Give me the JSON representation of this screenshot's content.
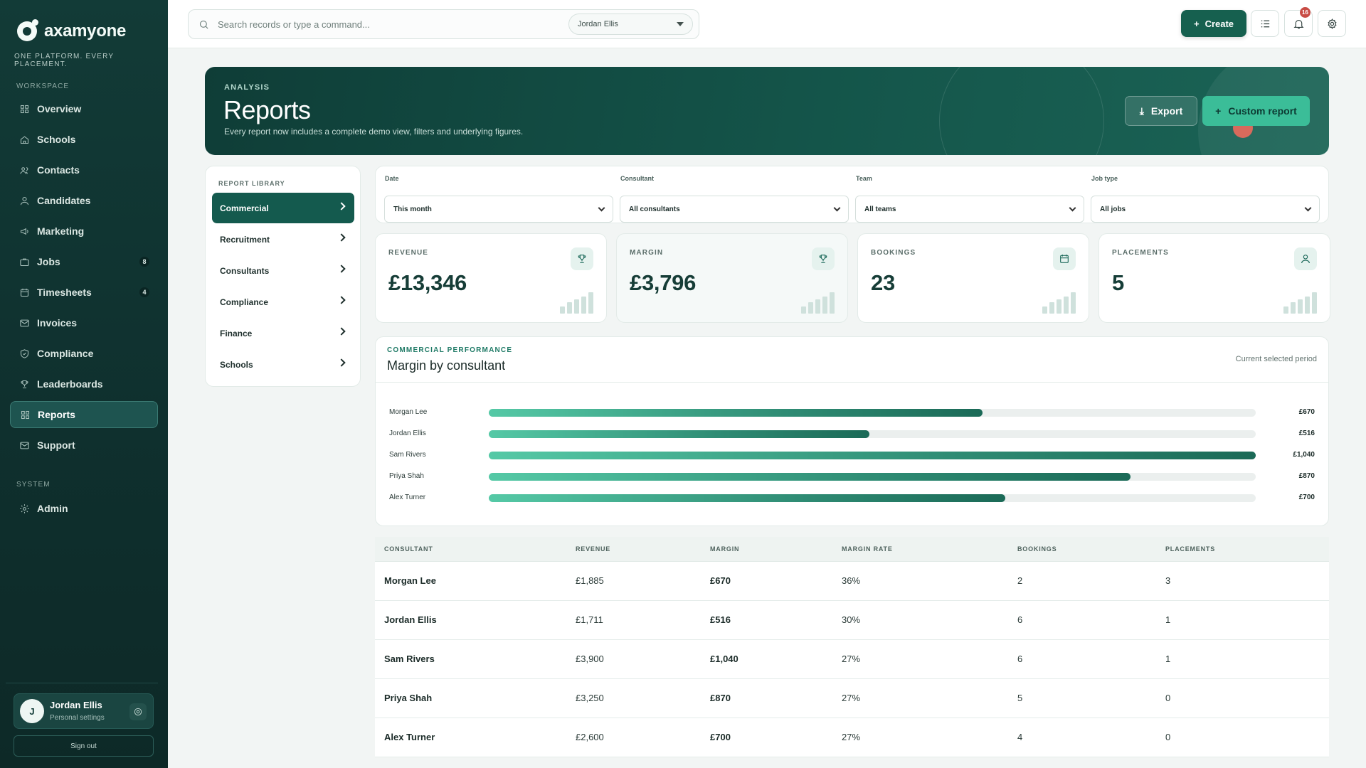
{
  "brand": {
    "name": "axamyone",
    "tagline": "ONE PLATFORM. EVERY PLACEMENT."
  },
  "sidebar": {
    "workspace_label": "WORKSPACE",
    "items": [
      {
        "label": "Overview",
        "icon": "grid-icon"
      },
      {
        "label": "Schools",
        "icon": "home-icon"
      },
      {
        "label": "Contacts",
        "icon": "users-icon"
      },
      {
        "label": "Candidates",
        "icon": "user-icon"
      },
      {
        "label": "Marketing",
        "icon": "megaphone-icon"
      },
      {
        "label": "Jobs",
        "icon": "briefcase-icon",
        "badge": "8"
      },
      {
        "label": "Timesheets",
        "icon": "calendar-icon",
        "badge": "4"
      },
      {
        "label": "Invoices",
        "icon": "mail-icon"
      },
      {
        "label": "Compliance",
        "icon": "shield-icon"
      },
      {
        "label": "Leaderboards",
        "icon": "trophy-icon"
      },
      {
        "label": "Reports",
        "icon": "grid-icon",
        "active": true
      },
      {
        "label": "Support",
        "icon": "mail-icon"
      }
    ],
    "system_label": "SYSTEM",
    "admin_label": "Admin",
    "user": {
      "initial": "J",
      "name": "Jordan Ellis",
      "subtitle": "Personal settings"
    },
    "signout_label": "Sign out"
  },
  "topbar": {
    "search_placeholder": "Search records or type a command...",
    "user_select": "Jordan Ellis",
    "create_label": "Create",
    "notification_count": "16"
  },
  "hero": {
    "kicker": "ANALYSIS",
    "title": "Reports",
    "subtitle": "Every report now includes a complete demo view, filters and underlying figures.",
    "export_label": "Export",
    "custom_label": "Custom report"
  },
  "library": {
    "title": "REPORT LIBRARY",
    "items": [
      "Commercial",
      "Recruitment",
      "Consultants",
      "Compliance",
      "Finance",
      "Schools"
    ]
  },
  "filters": [
    {
      "label": "Date",
      "value": "This month"
    },
    {
      "label": "Consultant",
      "value": "All consultants"
    },
    {
      "label": "Team",
      "value": "All teams"
    },
    {
      "label": "Job type",
      "value": "All jobs"
    }
  ],
  "stats": [
    {
      "label": "REVENUE",
      "value": "£13,346",
      "icon": "trophy-icon"
    },
    {
      "label": "MARGIN",
      "value": "£3,796",
      "icon": "trophy-icon"
    },
    {
      "label": "BOOKINGS",
      "value": "23",
      "icon": "calendar-icon"
    },
    {
      "label": "PLACEMENTS",
      "value": "5",
      "icon": "user-icon"
    }
  ],
  "chart": {
    "kicker": "COMMERCIAL PERFORMANCE",
    "title": "Margin by consultant",
    "period": "Current selected period"
  },
  "chart_data": {
    "type": "bar",
    "categories": [
      "Morgan Lee",
      "Jordan Ellis",
      "Sam Rivers",
      "Priya Shah",
      "Alex Turner"
    ],
    "values": [
      670,
      516,
      1040,
      870,
      700
    ],
    "value_labels": [
      "£670",
      "£516",
      "£1,040",
      "£870",
      "£700"
    ],
    "title": "Margin by consultant",
    "xlim": [
      0,
      1040
    ]
  },
  "table": {
    "headers": [
      "CONSULTANT",
      "REVENUE",
      "MARGIN",
      "MARGIN RATE",
      "BOOKINGS",
      "PLACEMENTS"
    ],
    "rows": [
      [
        "Morgan Lee",
        "£1,885",
        "£670",
        "36%",
        "2",
        "3"
      ],
      [
        "Jordan Ellis",
        "£1,711",
        "£516",
        "30%",
        "6",
        "1"
      ],
      [
        "Sam Rivers",
        "£3,900",
        "£1,040",
        "27%",
        "6",
        "1"
      ],
      [
        "Priya Shah",
        "£3,250",
        "£870",
        "27%",
        "5",
        "0"
      ],
      [
        "Alex Turner",
        "£2,600",
        "£700",
        "27%",
        "4",
        "0"
      ]
    ]
  }
}
